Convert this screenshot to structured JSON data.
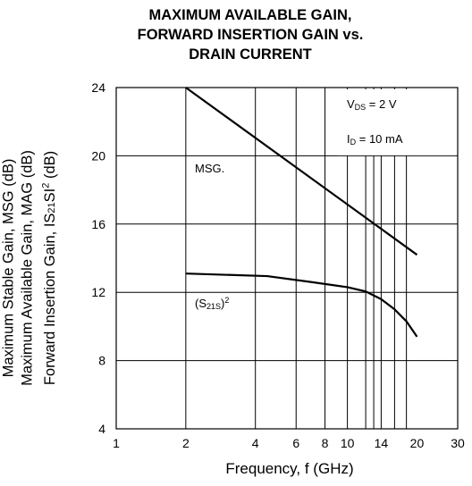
{
  "chart_data": {
    "type": "line",
    "title": [
      "MAXIMUM AVAILABLE GAIN,",
      "FORWARD INSERTION GAIN vs.",
      "DRAIN CURRENT"
    ],
    "xlabel": "Frequency, f (GHz)",
    "ylabel": [
      "Maximum Stable Gain, MSG (dB)",
      "Maximum Available Gain, MAG (dB)",
      "Forward Insertion Gain, IS21SI² (dB)"
    ],
    "x_scale": "log",
    "xlim": [
      1,
      30
    ],
    "ylim": [
      4,
      24
    ],
    "x_ticks": [
      1,
      2,
      4,
      6,
      8,
      10,
      14,
      20,
      30
    ],
    "x_tick_labels": [
      "1",
      "2",
      "4",
      "6",
      "8",
      "10",
      "14",
      "20",
      "30"
    ],
    "x_minor_grid": [
      2,
      4,
      6,
      8,
      10,
      12,
      13,
      14,
      16,
      18
    ],
    "y_ticks": [
      4,
      8,
      12,
      16,
      20,
      24
    ],
    "y_tick_labels": [
      "4",
      "8",
      "12",
      "16",
      "20",
      "24"
    ],
    "grid": true,
    "conditions": [
      "VDS = 2 V",
      "ID = 10 mA"
    ],
    "series": [
      {
        "name": "MSG.",
        "x": [
          2,
          20
        ],
        "y": [
          24,
          14.2
        ]
      },
      {
        "name": "(S21S)²",
        "x": [
          2,
          4.5,
          7,
          10,
          12,
          14,
          16,
          18,
          20
        ],
        "y": [
          13.1,
          12.95,
          12.6,
          12.3,
          12.05,
          11.6,
          11.0,
          10.3,
          9.4
        ]
      }
    ]
  },
  "annotations": {
    "condition_vds": {
      "main": "V",
      "sub": "DS",
      "rest": " = 2 V"
    },
    "condition_id": {
      "main": "I",
      "sub": "D",
      "rest": " = 10 mA"
    },
    "msg_label": "MSG.",
    "s21_label": {
      "open": "(S",
      "sub": "21S",
      "close": ")",
      "sup": "2"
    }
  }
}
